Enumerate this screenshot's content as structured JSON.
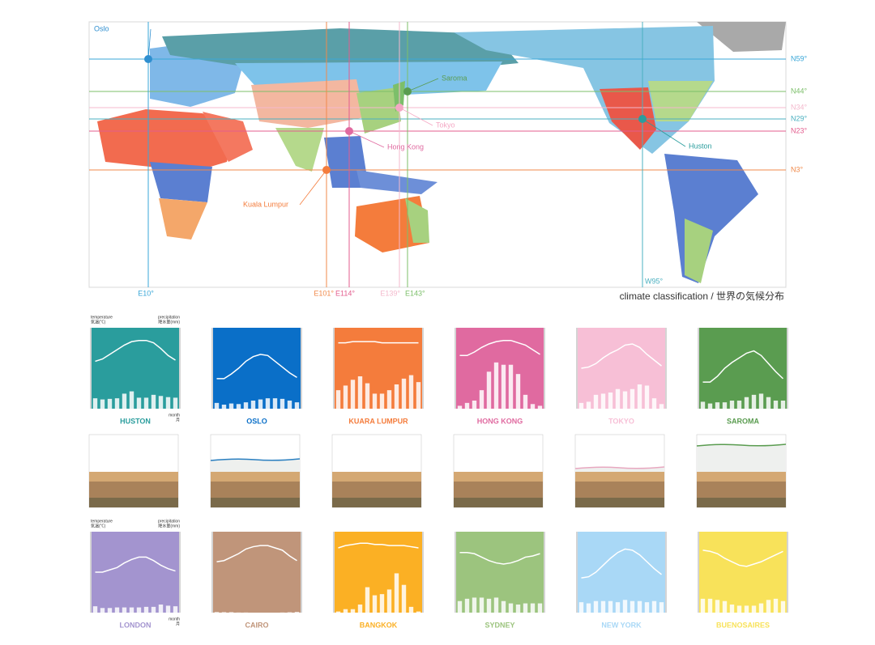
{
  "map": {
    "caption": "climate classification / 世界の気候分布",
    "latitudes": [
      {
        "label": "N59°",
        "color": "#3aa7d8"
      },
      {
        "label": "N44°",
        "color": "#7cbf6a"
      },
      {
        "label": "N34°",
        "color": "#f4b8cc"
      },
      {
        "label": "N29°",
        "color": "#4bb0c0"
      },
      {
        "label": "N23°",
        "color": "#e35d8e"
      },
      {
        "label": "N3°",
        "color": "#f08a4b"
      }
    ],
    "longitudes": [
      {
        "label": "E10°",
        "color": "#3aa7d8"
      },
      {
        "label": "E101°",
        "color": "#f08a4b"
      },
      {
        "label": "E114°",
        "color": "#e35d8e"
      },
      {
        "label": "E139°",
        "color": "#f4b8cc"
      },
      {
        "label": "E143°",
        "color": "#7cbf6a"
      },
      {
        "label": "W95°",
        "color": "#4bb0c0"
      }
    ],
    "cities": [
      {
        "name": "Oslo",
        "color": "#2f8fd0"
      },
      {
        "name": "Saroma",
        "color": "#5a9c50"
      },
      {
        "name": "Tokyo",
        "color": "#f4a8c4"
      },
      {
        "name": "Hong Kong",
        "color": "#e06aa0"
      },
      {
        "name": "Kuala Lumpur",
        "color": "#f47c3c"
      },
      {
        "name": "Huston",
        "color": "#2a9d9d"
      }
    ]
  },
  "climographs": {
    "ylim": [
      -30,
      40
    ],
    "y2lim": [
      0,
      700
    ],
    "axis_labels": {
      "temperature": "temperature",
      "temperature_jp": "気温(℃)",
      "precipitation": "precipitation",
      "precipitation_jp": "降水量(mm)",
      "month": "month",
      "month_jp": "月"
    },
    "cities": [
      {
        "name": "HUSTON",
        "color": "#2a9d9d",
        "temperature": [
          11,
          13,
          17,
          21,
          25,
          28,
          29,
          29,
          27,
          22,
          16,
          12
        ],
        "precipitation": [
          90,
          80,
          85,
          90,
          130,
          150,
          95,
          95,
          120,
          110,
          100,
          95
        ]
      },
      {
        "name": "OSLO",
        "color": "#0a6fc8",
        "temperature": [
          -4,
          -4,
          0,
          5,
          11,
          15,
          17,
          16,
          11,
          6,
          1,
          -3
        ],
        "precipitation": [
          50,
          35,
          45,
          40,
          55,
          70,
          80,
          90,
          90,
          85,
          70,
          55
        ]
      },
      {
        "name": "KUARA LUMPUR",
        "color": "#f47c3c",
        "temperature": [
          27,
          27,
          28,
          28,
          28,
          28,
          27,
          27,
          27,
          27,
          27,
          27
        ],
        "precipitation": [
          160,
          200,
          250,
          280,
          220,
          130,
          130,
          160,
          210,
          260,
          290,
          230
        ]
      },
      {
        "name": "HONG KONG",
        "color": "#e06aa0",
        "temperature": [
          16,
          16,
          19,
          23,
          26,
          28,
          29,
          29,
          27,
          25,
          21,
          17
        ],
        "precipitation": [
          25,
          50,
          70,
          160,
          320,
          400,
          380,
          380,
          300,
          120,
          40,
          25
        ]
      },
      {
        "name": "TOKYO",
        "color": "#f7bfd6",
        "temperature": [
          5,
          6,
          9,
          14,
          18,
          21,
          25,
          26,
          23,
          17,
          12,
          7
        ],
        "precipitation": [
          50,
          60,
          120,
          130,
          140,
          170,
          150,
          170,
          210,
          200,
          90,
          40
        ]
      },
      {
        "name": "SAROMA",
        "color": "#5a9c50",
        "temperature": [
          -7,
          -7,
          -2,
          5,
          10,
          14,
          18,
          20,
          16,
          9,
          2,
          -4
        ],
        "precipitation": [
          60,
          45,
          55,
          55,
          70,
          70,
          100,
          120,
          130,
          100,
          70,
          70
        ]
      },
      {
        "name": "LONDON",
        "color": "#a394cf",
        "temperature": [
          5,
          5,
          7,
          9,
          13,
          16,
          18,
          18,
          15,
          11,
          8,
          6
        ],
        "precipitation": [
          55,
          40,
          40,
          45,
          45,
          45,
          45,
          50,
          50,
          70,
          60,
          55
        ]
      },
      {
        "name": "CAIRO",
        "color": "#c0957a",
        "temperature": [
          14,
          15,
          18,
          21,
          25,
          27,
          28,
          28,
          26,
          24,
          19,
          15
        ],
        "precipitation": [
          5,
          4,
          4,
          1,
          1,
          0,
          0,
          0,
          0,
          1,
          3,
          6
        ]
      },
      {
        "name": "BANGKOK",
        "color": "#fbb024",
        "temperature": [
          26,
          28,
          29,
          30,
          30,
          29,
          29,
          28,
          28,
          28,
          27,
          26
        ],
        "precipitation": [
          10,
          30,
          30,
          70,
          220,
          150,
          160,
          200,
          340,
          240,
          50,
          10
        ]
      },
      {
        "name": "SYDNEY",
        "color": "#9cc47e",
        "temperature": [
          22,
          22,
          21,
          18,
          15,
          13,
          12,
          13,
          15,
          18,
          19,
          21
        ],
        "precipitation": [
          100,
          120,
          130,
          130,
          120,
          130,
          100,
          80,
          70,
          80,
          80,
          80
        ]
      },
      {
        "name": "NEW YORK",
        "color": "#a9d8f6",
        "temperature": [
          0,
          1,
          5,
          11,
          17,
          22,
          25,
          24,
          20,
          14,
          8,
          3
        ],
        "precipitation": [
          90,
          80,
          100,
          100,
          100,
          90,
          110,
          100,
          100,
          90,
          100,
          90
        ]
      },
      {
        "name": "BUENOSAIRES",
        "color": "#f8e25a",
        "temperature": [
          24,
          23,
          21,
          17,
          14,
          11,
          10,
          12,
          14,
          17,
          20,
          23
        ],
        "precipitation": [
          120,
          120,
          110,
          100,
          70,
          60,
          60,
          60,
          80,
          110,
          120,
          100
        ]
      }
    ]
  }
}
